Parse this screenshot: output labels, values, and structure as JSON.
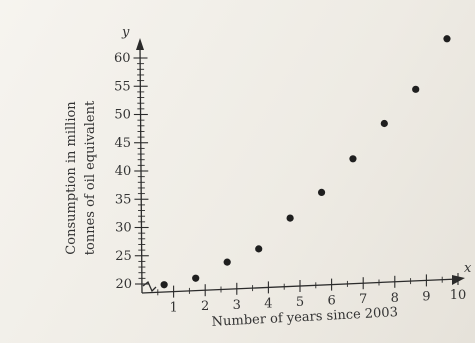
{
  "chart_data": {
    "type": "scatter",
    "title": "",
    "xlabel": "Number of years since 2003",
    "ylabel_line1": "Consumption in million",
    "ylabel_line2": "tonnes of oil equivalent",
    "x_axis_name": "x",
    "y_axis_name": "y",
    "xlim": [
      0,
      10
    ],
    "ylim": [
      20,
      60
    ],
    "x_ticks": [
      1,
      2,
      3,
      4,
      5,
      6,
      7,
      8,
      9,
      10
    ],
    "y_ticks": [
      20,
      25,
      30,
      35,
      40,
      45,
      50,
      55,
      60
    ],
    "y_axis_break": true,
    "grid": false,
    "points": [
      {
        "x": 0.7,
        "y": 19.7
      },
      {
        "x": 1.7,
        "y": 20.6
      },
      {
        "x": 2.7,
        "y": 23.2
      },
      {
        "x": 3.7,
        "y": 25.3
      },
      {
        "x": 4.7,
        "y": 30.5
      },
      {
        "x": 5.7,
        "y": 34.8
      },
      {
        "x": 6.7,
        "y": 40.5
      },
      {
        "x": 7.7,
        "y": 46.5
      },
      {
        "x": 8.7,
        "y": 52.3
      },
      {
        "x": 9.7,
        "y": 61.0
      }
    ]
  }
}
